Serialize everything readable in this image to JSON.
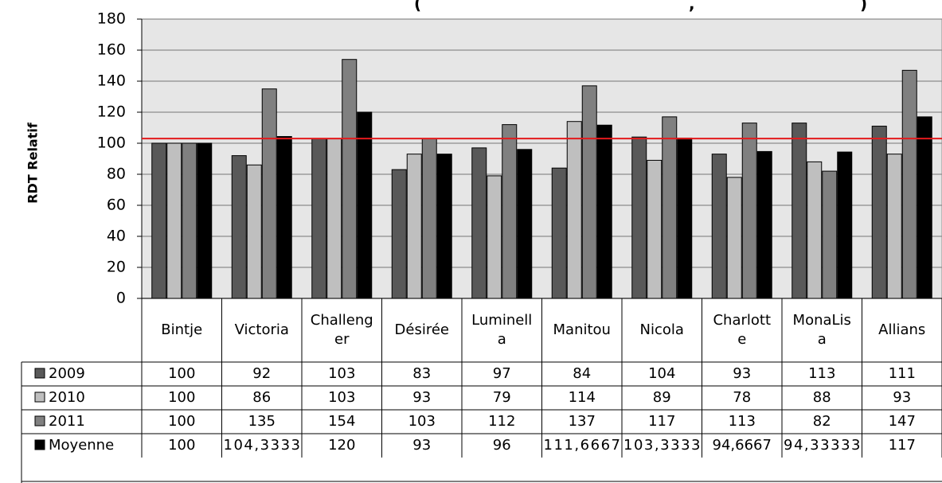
{
  "chart_data": {
    "type": "bar",
    "title": "",
    "xlabel": "",
    "ylabel": "RDT Relatif",
    "ylim": [
      0,
      180
    ],
    "yticks": [
      0,
      20,
      40,
      60,
      80,
      100,
      120,
      140,
      160,
      180
    ],
    "grid": true,
    "legend": "data-table",
    "categories": [
      "Bintje",
      "Victoria",
      "Challenger",
      "Désirée",
      "Luminella",
      "Manitou",
      "Nicola",
      "Charlotte",
      "MonaLisa",
      "Allians"
    ],
    "category_labels": [
      [
        "Bintje"
      ],
      [
        "Victoria"
      ],
      [
        "Challeng",
        "er"
      ],
      [
        "Désirée"
      ],
      [
        "Luminell",
        "a"
      ],
      [
        "Manitou"
      ],
      [
        "Nicola"
      ],
      [
        "Charlott",
        "e"
      ],
      [
        "MonaLis",
        "a"
      ],
      [
        "Allians"
      ]
    ],
    "series": [
      {
        "name": "2009",
        "color": "#595959",
        "values": [
          100,
          92,
          103,
          83,
          97,
          84,
          104,
          93,
          113,
          111
        ],
        "labels": [
          "100",
          "92",
          "103",
          "83",
          "97",
          "84",
          "104",
          "93",
          "113",
          "111"
        ]
      },
      {
        "name": "2010",
        "color": "#bfbfbf",
        "values": [
          100,
          86,
          103,
          93,
          79,
          114,
          89,
          78,
          88,
          93
        ],
        "labels": [
          "100",
          "86",
          "103",
          "93",
          "79",
          "114",
          "89",
          "78",
          "88",
          "93"
        ]
      },
      {
        "name": "2011",
        "color": "#808080",
        "values": [
          100,
          135,
          154,
          103,
          112,
          137,
          117,
          113,
          82,
          147
        ],
        "labels": [
          "100",
          "135",
          "154",
          "103",
          "112",
          "137",
          "117",
          "113",
          "82",
          "147"
        ]
      },
      {
        "name": "Moyenne",
        "color": "#000000",
        "values": [
          100,
          104.3333,
          120,
          93,
          96,
          111.6667,
          103.3333,
          94.6667,
          94.33333,
          117
        ],
        "labels": [
          "100",
          "104,3333",
          "120",
          "93",
          "96",
          "111,6667",
          "103,3333",
          "94,6667",
          "94,33333",
          "117"
        ]
      }
    ],
    "reference_line": {
      "value": 103,
      "color": "#e31a1c"
    }
  }
}
